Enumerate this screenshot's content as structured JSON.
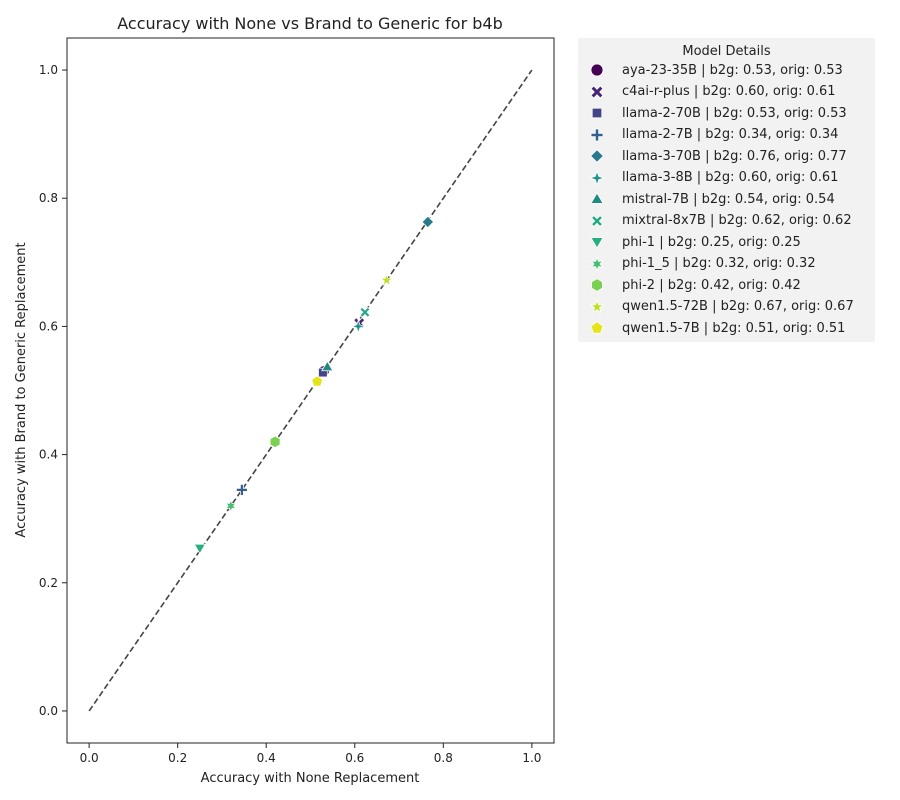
{
  "chart_data": {
    "type": "scatter",
    "title": "Accuracy with None vs Brand to Generic for b4b",
    "xlabel": "Accuracy with None Replacement",
    "ylabel": "Accuracy with Brand to Generic Replacement",
    "xlim": [
      -0.05,
      1.05
    ],
    "ylim": [
      -0.05,
      1.05
    ],
    "xticks": [
      "0.0",
      "0.2",
      "0.4",
      "0.6",
      "0.8",
      "1.0"
    ],
    "yticks": [
      "0.0",
      "0.2",
      "0.4",
      "0.6",
      "0.8",
      "1.0"
    ],
    "diagonal": {
      "x": [
        0,
        1
      ],
      "y": [
        0,
        1
      ],
      "style": "dashed",
      "color": "#444444"
    },
    "grid": false,
    "legend": {
      "title": "Model Details",
      "placement": "outside-top-right"
    },
    "series": [
      {
        "name": "aya-23-35B | b2g: 0.53, orig: 0.53",
        "marker": "circle",
        "color": "#440154",
        "x": 0.53,
        "y": 0.53
      },
      {
        "name": "c4ai-r-plus | b2g: 0.60, orig: 0.61",
        "marker": "x",
        "color": "#482475",
        "x": 0.61,
        "y": 0.605
      },
      {
        "name": "llama-2-70B | b2g: 0.53, orig: 0.53",
        "marker": "square",
        "color": "#414487",
        "x": 0.528,
        "y": 0.528
      },
      {
        "name": "llama-2-7B | b2g: 0.34, orig: 0.34",
        "marker": "plus",
        "color": "#355f8d",
        "x": 0.345,
        "y": 0.345
      },
      {
        "name": "llama-3-70B | b2g: 0.76, orig: 0.77",
        "marker": "diamond",
        "color": "#2a788e",
        "x": 0.765,
        "y": 0.763
      },
      {
        "name": "llama-3-8B | b2g: 0.60, orig: 0.61",
        "marker": "star4",
        "color": "#21918c",
        "x": 0.608,
        "y": 0.6
      },
      {
        "name": "mistral-7B | b2g: 0.54, orig: 0.54",
        "marker": "triangle-up",
        "color": "#1f8a82",
        "x": 0.538,
        "y": 0.537
      },
      {
        "name": "mixtral-8x7B | b2g: 0.62, orig: 0.62",
        "marker": "x-thin",
        "color": "#22a884",
        "x": 0.623,
        "y": 0.622
      },
      {
        "name": "phi-1 | b2g: 0.25, orig: 0.25",
        "marker": "triangle-down",
        "color": "#29af7f",
        "x": 0.25,
        "y": 0.254
      },
      {
        "name": "phi-1_5 | b2g: 0.32, orig: 0.32",
        "marker": "star6",
        "color": "#44bf70",
        "x": 0.32,
        "y": 0.32
      },
      {
        "name": "phi-2 | b2g: 0.42, orig: 0.42",
        "marker": "hexagon",
        "color": "#7ad151",
        "x": 0.42,
        "y": 0.42
      },
      {
        "name": "qwen1.5-72B | b2g: 0.67, orig: 0.67",
        "marker": "star5",
        "color": "#bddf26",
        "x": 0.672,
        "y": 0.672
      },
      {
        "name": "qwen1.5-7B | b2g: 0.51, orig: 0.51",
        "marker": "pentagon",
        "color": "#e5e419",
        "x": 0.515,
        "y": 0.514
      }
    ]
  }
}
